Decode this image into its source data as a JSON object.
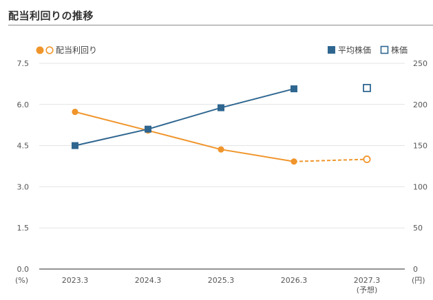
{
  "header": {
    "title": "配当利回りの推移"
  },
  "chart_data": {
    "type": "line",
    "categories": [
      "2023.3",
      "2024.3",
      "2025.3",
      "2026.3",
      "2027.3"
    ],
    "category_sublabels": [
      "",
      "",
      "",
      "",
      "(予想)"
    ],
    "left_axis": {
      "unit": "(%)",
      "ticks": [
        "0.0",
        "1.5",
        "3.0",
        "4.5",
        "6.0",
        "7.5"
      ],
      "ylim": [
        0,
        7.5
      ]
    },
    "right_axis": {
      "unit": "(円)",
      "ticks": [
        "0",
        "50",
        "100",
        "150",
        "200",
        "250"
      ],
      "ylim": [
        0,
        250
      ]
    },
    "grid": true,
    "legend": {
      "yield": "配当利回り",
      "avg_price": "平均株価",
      "price": "株価"
    },
    "series": [
      {
        "key": "yield",
        "name": "配当利回り",
        "axis": "left",
        "color": "#f0952b",
        "values": [
          5.73,
          5.05,
          4.36,
          3.92,
          4.0
        ],
        "forecast_index": 4
      },
      {
        "key": "avg_price",
        "name": "平均株価",
        "axis": "right",
        "color": "#2f6690",
        "values": [
          150,
          170,
          196,
          219,
          null
        ]
      },
      {
        "key": "price",
        "name": "株価",
        "axis": "right",
        "color": "#2f6690",
        "values": [
          null,
          null,
          null,
          null,
          220
        ]
      }
    ]
  }
}
